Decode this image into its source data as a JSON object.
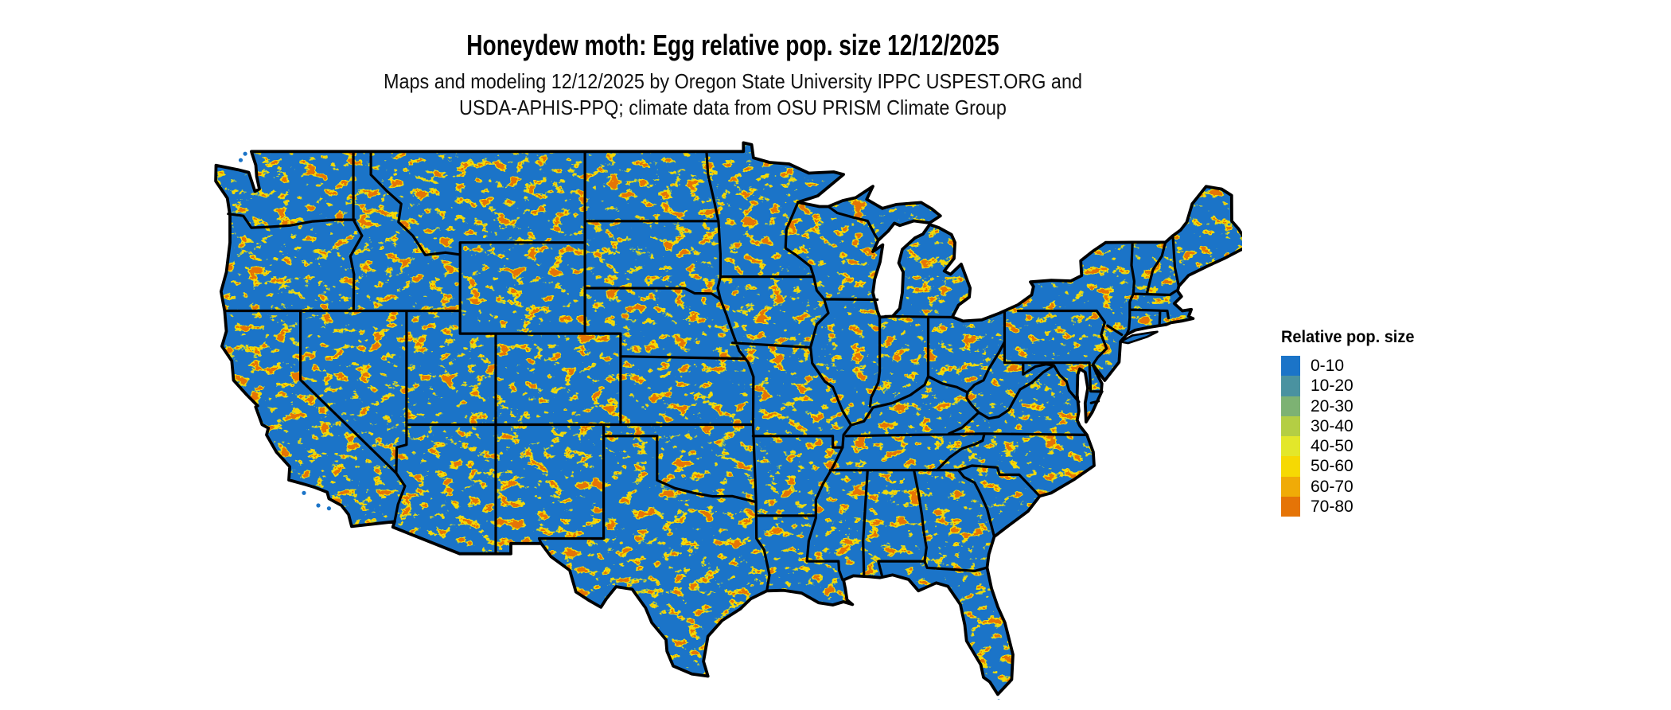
{
  "header": {
    "title": "Honeydew moth: Egg relative pop. size 12/12/2025",
    "subtitle_line1": "Maps and modeling 12/12/2025 by Oregon State University IPPC USPEST.ORG and",
    "subtitle_line2": "USDA-APHIS-PPQ; climate data from OSU PRISM Climate Group"
  },
  "map": {
    "region": "Conterminous United States",
    "type": "raster population-index map",
    "base_color": "#1b74c8",
    "state_border_color": "#000000",
    "water_color": "#ffffff"
  },
  "legend": {
    "title": "Relative pop. size",
    "entries": [
      {
        "label": "0-10",
        "color": "#1b74c8"
      },
      {
        "label": "10-20",
        "color": "#4a92a0"
      },
      {
        "label": "20-30",
        "color": "#7db273"
      },
      {
        "label": "30-40",
        "color": "#b4ce44"
      },
      {
        "label": "40-50",
        "color": "#e3e72a"
      },
      {
        "label": "50-60",
        "color": "#f6d903"
      },
      {
        "label": "60-70",
        "color": "#f0ab07"
      },
      {
        "label": "70-80",
        "color": "#e57407"
      }
    ]
  }
}
